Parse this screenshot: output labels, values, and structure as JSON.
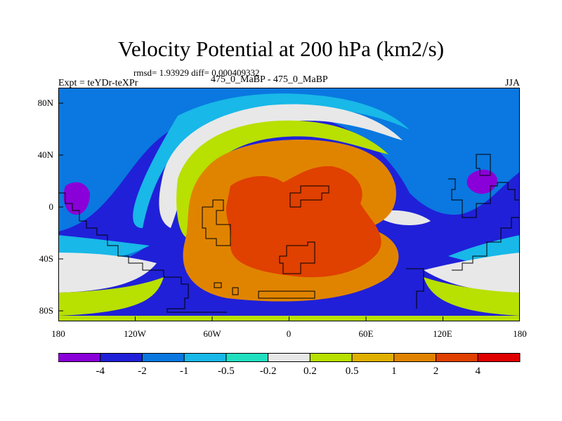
{
  "header": {
    "title": "Velocity Potential at 200 hPa (km2/s)",
    "stats": "rmsd= 1.93929 diff= 0.000409332",
    "experiment": "Expt = teYDr-teXPr",
    "subtitle": "475_0_MaBP - 475_0_MaBP",
    "season": "JJA"
  },
  "axes": {
    "lon_labels": [
      "180",
      "120W",
      "60W",
      "0",
      "60E",
      "120E",
      "180"
    ],
    "lat_labels": [
      "80N",
      "40N",
      "0",
      "40S",
      "80S"
    ]
  },
  "colorbar": {
    "colors": [
      "#8a00d8",
      "#2020d8",
      "#0a78e0",
      "#18b8e8",
      "#20e0c0",
      "#e8e8e8",
      "#b8e000",
      "#e0b000",
      "#e08400",
      "#e04000",
      "#e00000"
    ],
    "labels": [
      "-4",
      "-2",
      "-1",
      "-0.5",
      "-0.2",
      "0.2",
      "0.5",
      "1",
      "2",
      "4"
    ]
  },
  "map_fill": {
    "ocean_blue": "#0a78e0",
    "coast_color": "#000000"
  }
}
